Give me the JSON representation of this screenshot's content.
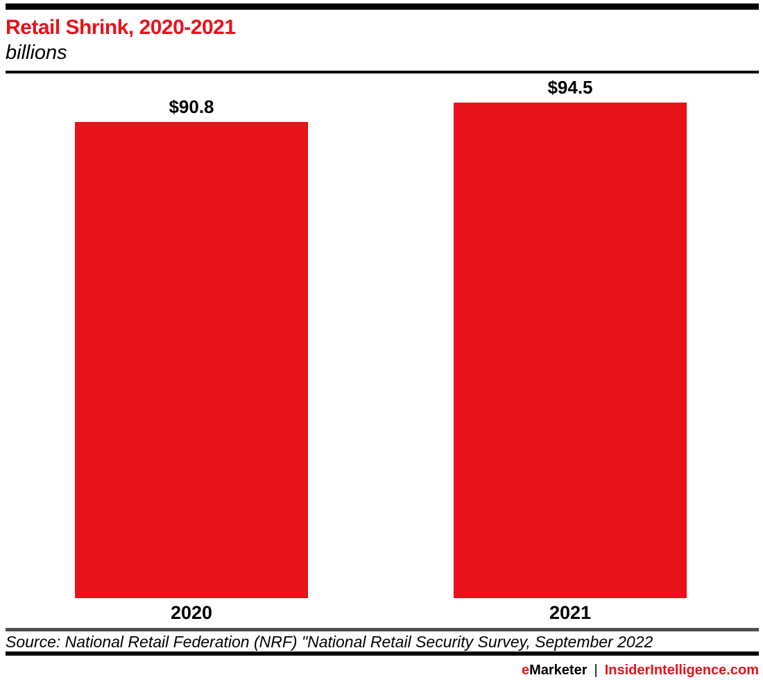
{
  "header": {
    "title": "Retail Shrink, 2020-2021",
    "subtitle": "billions"
  },
  "chart_data": {
    "type": "bar",
    "title": "Retail Shrink, 2020-2021",
    "subtitle": "billions",
    "unit": "US$ billions",
    "categories": [
      "2020",
      "2021"
    ],
    "values": [
      90.8,
      94.5
    ],
    "value_labels": [
      "$90.8",
      "$94.5"
    ],
    "bar_color": "#e8121a",
    "ylim": [
      0,
      94.5
    ],
    "grid": false,
    "legend": false,
    "value_label_position": "above-bar",
    "category_label_position": "below-bar"
  },
  "source": {
    "text": "Source: National Retail Federation (NRF) \"National Retail Security Survey, September 2022"
  },
  "branding": {
    "brand_first_letter": "e",
    "brand_rest": "Marketer",
    "separator": "|",
    "site": "InsiderIntelligence.com"
  },
  "colors": {
    "accent_red": "#e8121a",
    "rule_black": "#000000",
    "rule_gray": "#4e4e50"
  }
}
